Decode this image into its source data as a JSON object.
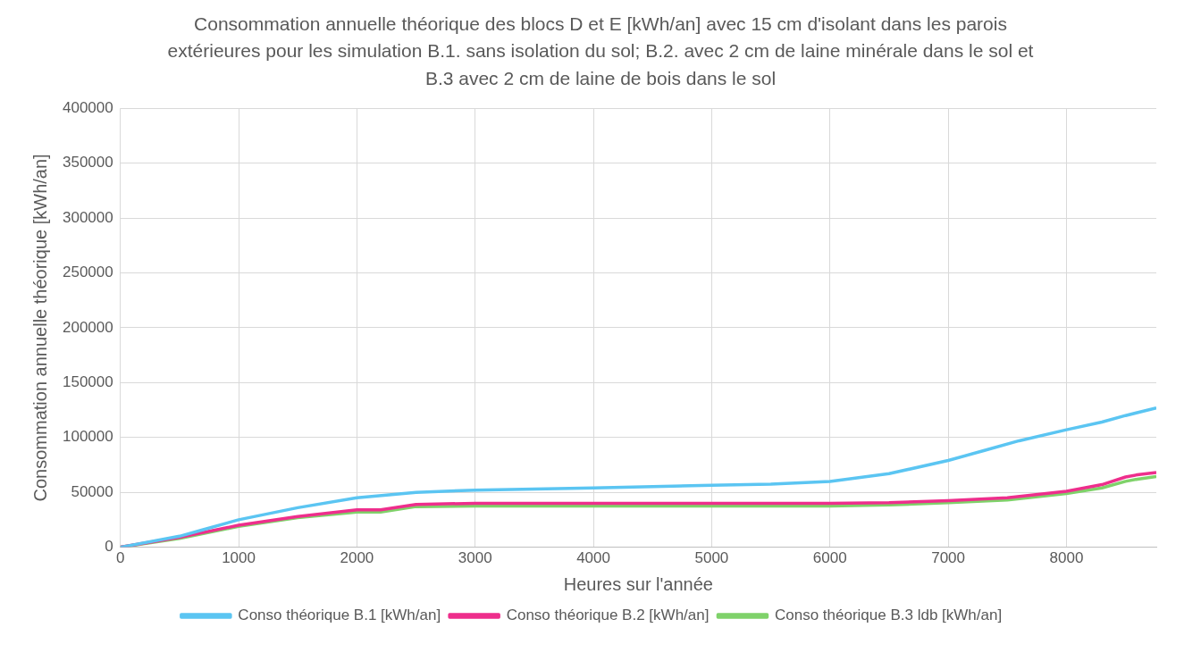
{
  "chart_data": {
    "type": "line",
    "title": "Consommation annuelle théorique des blocs D et E [kWh/an] avec 15 cm d'isolant dans les parois extérieures pour les simulation B.1. sans isolation du sol; B.2. avec 2 cm de laine minérale dans le sol et B.3 avec 2 cm de laine de bois dans le sol",
    "xlabel": "Heures sur l'année",
    "ylabel": "Consommation annuelle théorique [kWh/an]",
    "xlim": [
      0,
      8760
    ],
    "xticks": [
      0,
      1000,
      2000,
      3000,
      4000,
      5000,
      6000,
      7000,
      8000
    ],
    "ylim": [
      0,
      400000
    ],
    "yticks": [
      0,
      50000,
      100000,
      150000,
      200000,
      250000,
      300000,
      350000,
      400000
    ],
    "grid": true,
    "legend": "bottom",
    "marker": "none",
    "line_style": "solid",
    "series": [
      {
        "name": "Conso théorique B.1 [kWh/an]",
        "color": "#5bc5f2",
        "x": [
          0,
          500,
          700,
          1000,
          1500,
          2000,
          2500,
          3000,
          4000,
          5000,
          5500,
          6000,
          6500,
          7000,
          7300,
          7600,
          8000,
          8300,
          8500,
          8760
        ],
        "values": [
          0,
          10000,
          16000,
          25000,
          36000,
          45000,
          50000,
          52000,
          54000,
          56500,
          57500,
          60000,
          67000,
          79000,
          88000,
          97000,
          107000,
          114000,
          120000,
          127000
        ]
      },
      {
        "name": "Conso théorique B.2 [kWh/an]",
        "color": "#ee2e8c",
        "x": [
          0,
          500,
          1000,
          1500,
          2000,
          2200,
          2500,
          3000,
          6000,
          6500,
          7000,
          7500,
          8000,
          8300,
          8500,
          8600,
          8760
        ],
        "values": [
          0,
          9000,
          20000,
          28000,
          34000,
          34000,
          39000,
          40000,
          40000,
          40500,
          42500,
          45000,
          51000,
          57000,
          64000,
          66000,
          68000
        ]
      },
      {
        "name": "Conso théorique B.3 ldb [kWh/an]",
        "color": "#7fd26a",
        "x": [
          0,
          500,
          1000,
          1500,
          2000,
          2200,
          2500,
          3000,
          6000,
          6500,
          7000,
          7500,
          8000,
          8300,
          8500,
          8600,
          8760
        ],
        "values": [
          0,
          8000,
          19000,
          27000,
          32000,
          32000,
          37000,
          37500,
          37500,
          38500,
          40500,
          43000,
          49000,
          54000,
          60000,
          62000,
          64500
        ]
      }
    ]
  }
}
